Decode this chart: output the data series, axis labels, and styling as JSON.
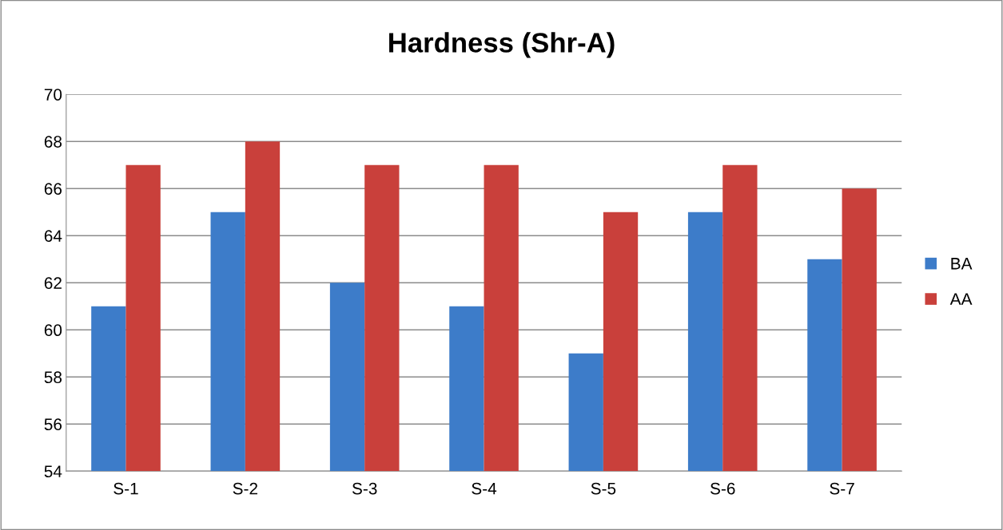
{
  "chart_data": {
    "type": "bar",
    "title": "Hardness (Shr-A)",
    "categories": [
      "S-1",
      "S-2",
      "S-3",
      "S-4",
      "S-5",
      "S-6",
      "S-7"
    ],
    "series": [
      {
        "name": "BA",
        "color": "#3d7cc9",
        "values": [
          61,
          65,
          62,
          61,
          59,
          65,
          63
        ]
      },
      {
        "name": "AA",
        "color": "#c9403b",
        "values": [
          67,
          68,
          67,
          67,
          65,
          67,
          66
        ]
      }
    ],
    "ylim": [
      54,
      70
    ],
    "yticks": [
      54,
      56,
      58,
      60,
      62,
      64,
      66,
      68,
      70
    ],
    "grid": "y",
    "legend": "right"
  }
}
